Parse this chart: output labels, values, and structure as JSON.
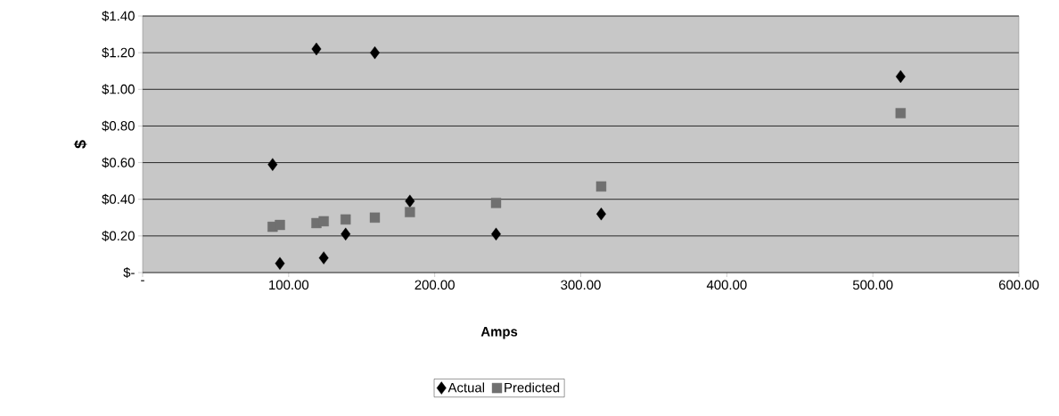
{
  "chart_data": {
    "type": "scatter",
    "xlabel": "Amps",
    "ylabel": "$",
    "xlim": [
      0,
      600
    ],
    "ylim": [
      0,
      1.4
    ],
    "xticks": [
      {
        "value": 0,
        "label": "-"
      },
      {
        "value": 100,
        "label": "100.00"
      },
      {
        "value": 200,
        "label": "200.00"
      },
      {
        "value": 300,
        "label": "300.00"
      },
      {
        "value": 400,
        "label": "400.00"
      },
      {
        "value": 500,
        "label": "500.00"
      },
      {
        "value": 600,
        "label": "600.00"
      }
    ],
    "yticks": [
      {
        "value": 0,
        "label": "$-"
      },
      {
        "value": 0.2,
        "label": "$0.20"
      },
      {
        "value": 0.4,
        "label": "$0.40"
      },
      {
        "value": 0.6,
        "label": "$0.60"
      },
      {
        "value": 0.8,
        "label": "$0.80"
      },
      {
        "value": 1.0,
        "label": "$1.00"
      },
      {
        "value": 1.2,
        "label": "$1.20"
      },
      {
        "value": 1.4,
        "label": "$1.40"
      }
    ],
    "grid": "y",
    "legend": "bottom",
    "series": [
      {
        "name": "Actual",
        "color": "#000000",
        "marker": "diamond",
        "x": [
          89,
          94,
          119,
          124,
          139,
          159,
          183,
          242,
          314,
          519
        ],
        "values": [
          0.59,
          0.05,
          1.22,
          0.08,
          0.21,
          1.2,
          0.39,
          0.21,
          0.32,
          1.07
        ]
      },
      {
        "name": "Predicted",
        "color": "#707070",
        "marker": "square",
        "x": [
          89,
          94,
          119,
          124,
          139,
          159,
          183,
          242,
          314,
          519
        ],
        "values": [
          0.25,
          0.26,
          0.27,
          0.28,
          0.29,
          0.3,
          0.33,
          0.38,
          0.47,
          0.87
        ]
      }
    ]
  }
}
